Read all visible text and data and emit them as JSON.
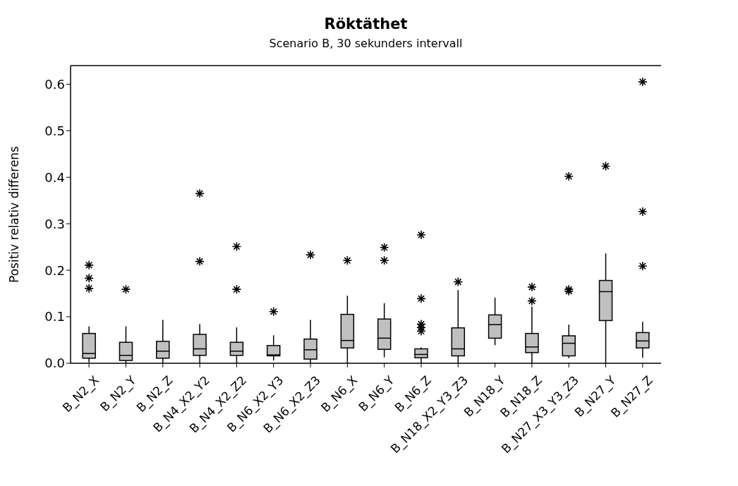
{
  "chart_data": {
    "type": "box",
    "title": "Röktäthet",
    "subtitle": "Scenario B, 30 sekunders intervall",
    "ylabel": "Positiv relativ differens",
    "color": "#c0c0c0",
    "categories": [
      "B_N2_X",
      "B_N2_Y",
      "B_N2_Z",
      "B_N4_X2_Y2",
      "B_N4_X2_Z2",
      "B_N6_X2_Y3",
      "B_N6_X2_Z3",
      "B_N6_X",
      "B_N6_Y",
      "B_N6_Z",
      "B_N18_X2_Y3_Z3",
      "B_N18_Y",
      "B_N18_Z",
      "B_N27_X3_Y3_Z3",
      "B_N27_Y",
      "B_N27_Z"
    ],
    "boxes": [
      {
        "low": 0.002,
        "q1": 0.011,
        "median": 0.021,
        "q3": 0.064,
        "high": 0.079,
        "outliers": [
          0.161,
          0.183,
          0.211
        ]
      },
      {
        "low": 0.0,
        "q1": 0.006,
        "median": 0.017,
        "q3": 0.045,
        "high": 0.079,
        "outliers": [
          0.159
        ]
      },
      {
        "low": 0.0,
        "q1": 0.011,
        "median": 0.026,
        "q3": 0.047,
        "high": 0.093
      },
      {
        "low": 0.0,
        "q1": 0.017,
        "median": 0.031,
        "q3": 0.062,
        "high": 0.084,
        "outliers": [
          0.219,
          0.365
        ]
      },
      {
        "low": 0.0,
        "q1": 0.017,
        "median": 0.026,
        "q3": 0.045,
        "high": 0.077,
        "outliers": [
          0.159,
          0.251
        ]
      },
      {
        "low": 0.006,
        "q1": 0.016,
        "median": 0.018,
        "q3": 0.038,
        "high": 0.06,
        "outliers": [
          0.111
        ]
      },
      {
        "low": 0.0,
        "q1": 0.009,
        "median": 0.029,
        "q3": 0.052,
        "high": 0.093,
        "outliers": [
          0.233
        ]
      },
      {
        "low": 0.0,
        "q1": 0.033,
        "median": 0.049,
        "q3": 0.105,
        "high": 0.145,
        "outliers": [
          0.221
        ]
      },
      {
        "low": 0.013,
        "q1": 0.03,
        "median": 0.054,
        "q3": 0.095,
        "high": 0.129,
        "outliers": [
          0.221,
          0.249
        ]
      },
      {
        "low": 0.0,
        "q1": 0.012,
        "median": 0.019,
        "q3": 0.031,
        "high": 0.034,
        "outliers": [
          0.069,
          0.077,
          0.084,
          0.139,
          0.276
        ]
      },
      {
        "low": 0.0,
        "q1": 0.016,
        "median": 0.031,
        "q3": 0.076,
        "high": 0.157,
        "outliers": [
          0.175
        ]
      },
      {
        "low": 0.039,
        "q1": 0.054,
        "median": 0.083,
        "q3": 0.104,
        "high": 0.141
      },
      {
        "low": 0.0,
        "q1": 0.023,
        "median": 0.035,
        "q3": 0.064,
        "high": 0.122,
        "outliers": [
          0.134,
          0.164
        ]
      },
      {
        "low": 0.011,
        "q1": 0.016,
        "median": 0.043,
        "q3": 0.059,
        "high": 0.083,
        "outliers": [
          0.155,
          0.159,
          0.402
        ]
      },
      {
        "low": 0.0,
        "q1": 0.092,
        "median": 0.154,
        "q3": 0.178,
        "high": 0.236,
        "outliers": [
          0.424
        ]
      },
      {
        "low": 0.012,
        "q1": 0.033,
        "median": 0.048,
        "q3": 0.066,
        "high": 0.089,
        "outliers": [
          0.209,
          0.326,
          0.605
        ]
      }
    ],
    "ylim": [
      0,
      0.64
    ],
    "yticks": [
      {
        "value": 0,
        "label": "0.0"
      },
      {
        "value": 0.1,
        "label": "0.1"
      },
      {
        "value": 0.2,
        "label": "0.2"
      },
      {
        "value": 0.3,
        "label": "0.3"
      },
      {
        "value": 0.4,
        "label": "0.4"
      },
      {
        "value": 0.5,
        "label": "0.5"
      },
      {
        "value": 0.6,
        "label": "0.6"
      }
    ]
  }
}
